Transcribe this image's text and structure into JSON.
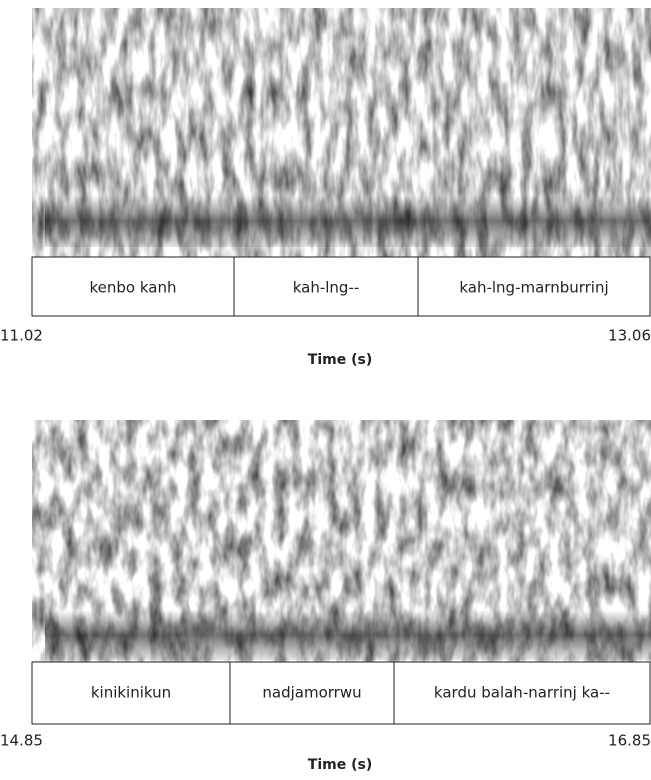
{
  "panels": [
    {
      "intervals": [
        "kenbo kanh",
        "kah-lng--",
        "kah-lng-marnburrinj"
      ],
      "start_time": 11.02,
      "end_time": 13.06,
      "axis_label": "Time (s)"
    },
    {
      "intervals": [
        "kinikinikun",
        "nadjamorrwu",
        "kardu balah-narrinj ka--"
      ],
      "start_time": 14.85,
      "end_time": 16.85,
      "axis_label": "Time (s)"
    }
  ]
}
